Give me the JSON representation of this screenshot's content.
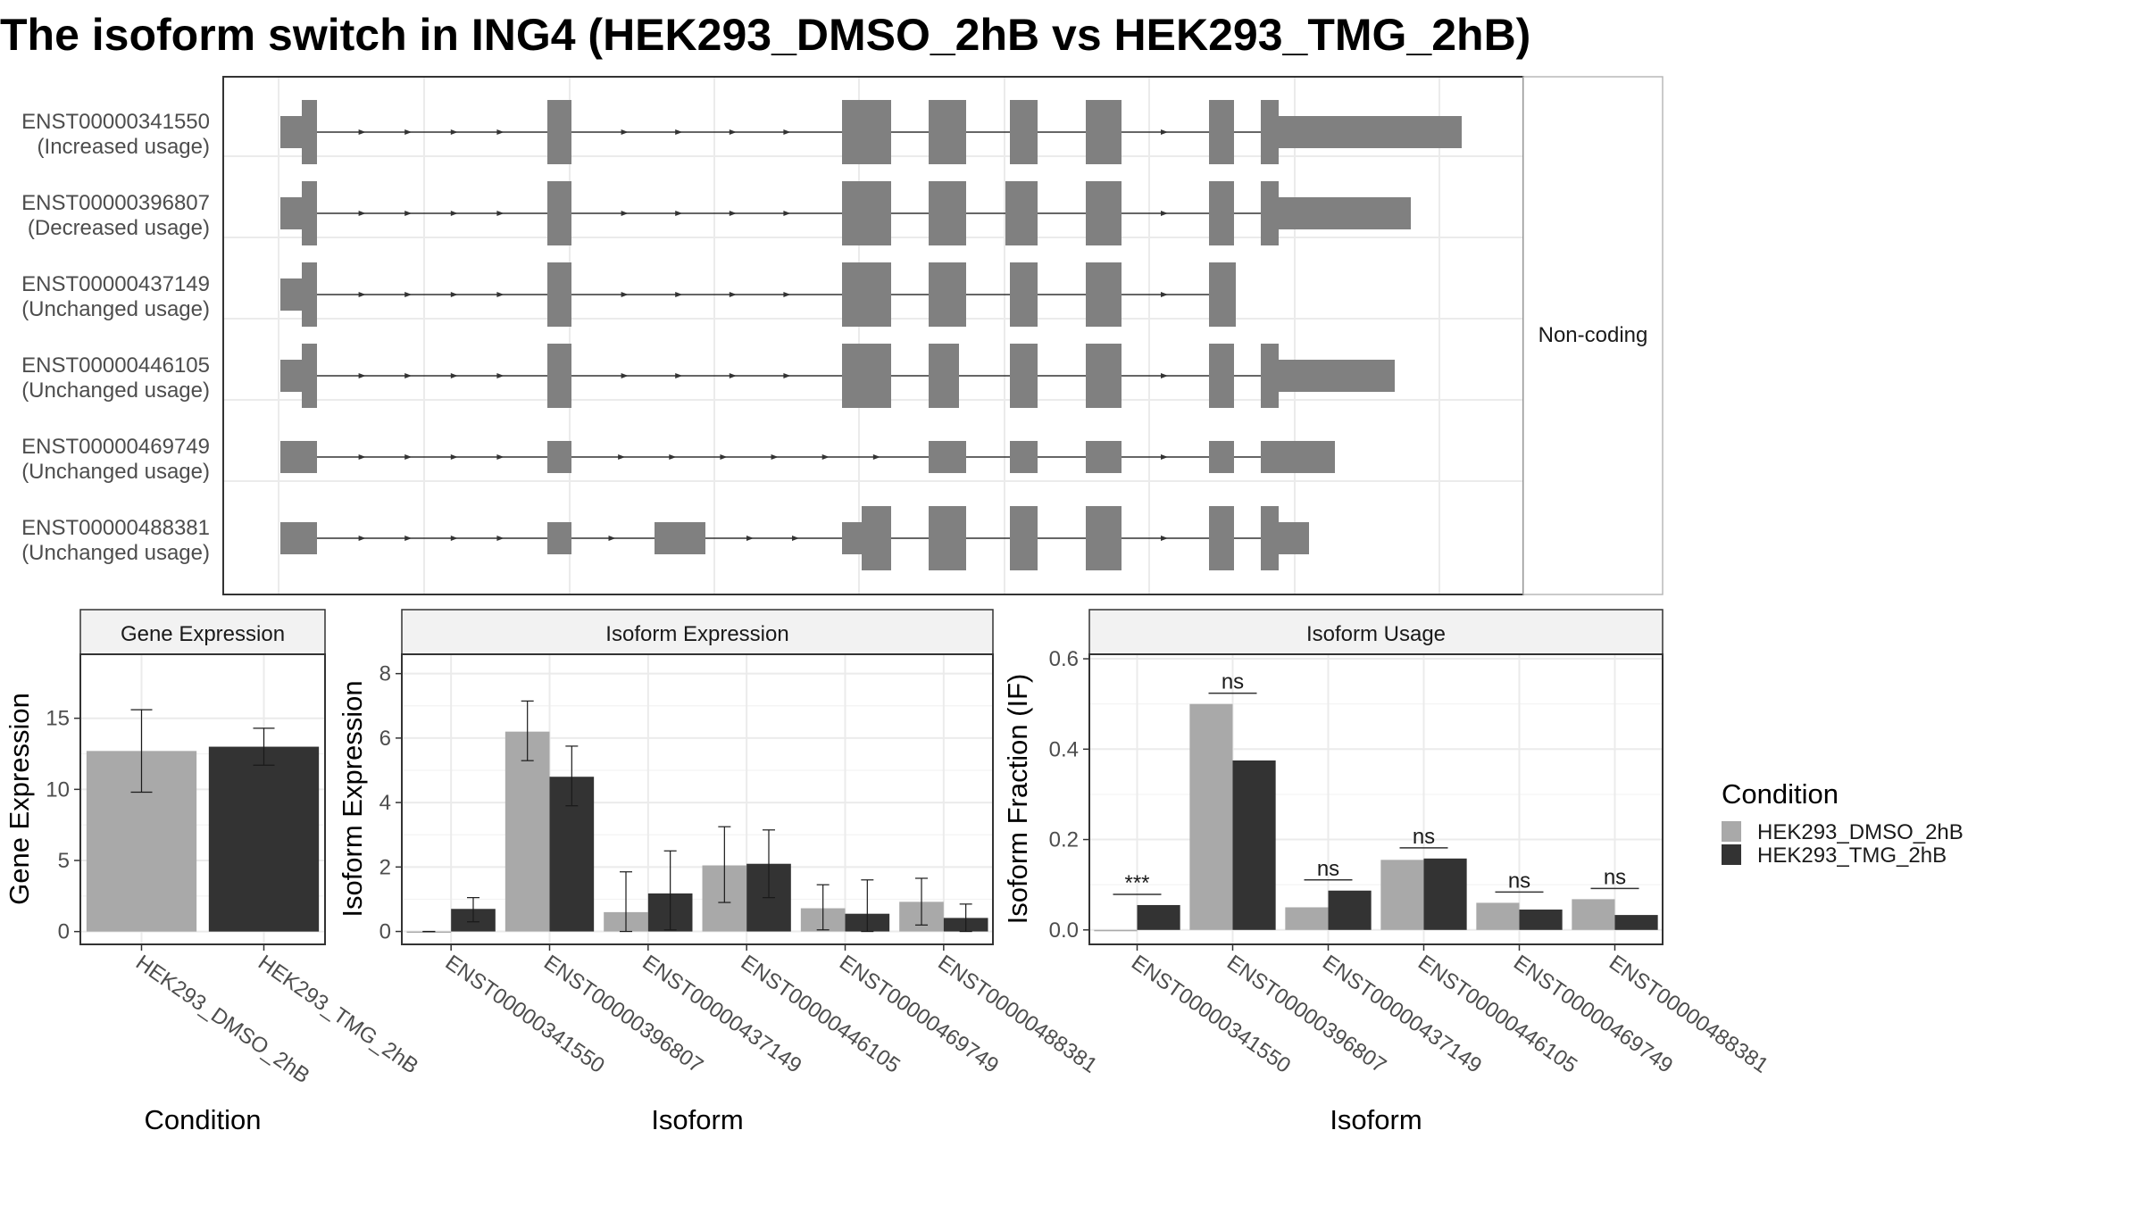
{
  "title": "The isoform switch in ING4 (HEK293_DMSO_2hB vs HEK293_TMG_2hB)",
  "colors": {
    "dmso": "#a9a9a9",
    "tmg": "#333333",
    "exon": "#808080",
    "strip": "#f2f2f2",
    "grid": "#ebebeb"
  },
  "structure": {
    "facet_label": "Non-coding",
    "isoforms": [
      {
        "id": "ENST00000341550",
        "usage": "(Increased usage)"
      },
      {
        "id": "ENST00000396807",
        "usage": "(Decreased usage)"
      },
      {
        "id": "ENST00000437149",
        "usage": "(Unchanged usage)"
      },
      {
        "id": "ENST00000446105",
        "usage": "(Unchanged usage)"
      },
      {
        "id": "ENST00000469749",
        "usage": "(Unchanged usage)"
      },
      {
        "id": "ENST00000488381",
        "usage": "(Unchanged usage)"
      }
    ]
  },
  "chart_data": [
    {
      "type": "bar",
      "panel": "gene",
      "title": "Gene Expression",
      "xlabel": "Condition",
      "ylabel": "Gene Expression",
      "ylim": [
        -0.9,
        19.5
      ],
      "yticks": [
        0,
        5,
        10,
        15
      ],
      "categories": [
        "HEK293_DMSO_2hB",
        "HEK293_TMG_2hB"
      ],
      "values": [
        12.7,
        13.0
      ],
      "errors": [
        [
          9.8,
          15.6
        ],
        [
          11.7,
          14.3
        ]
      ]
    },
    {
      "type": "bar",
      "panel": "isoform_expression",
      "title": "Isoform Expression",
      "xlabel": "Isoform",
      "ylabel": "Isoform Expression",
      "ylim": [
        -0.4,
        8.6
      ],
      "yticks": [
        0,
        2,
        4,
        6,
        8
      ],
      "categories": [
        "ENST00000341550",
        "ENST00000396807",
        "ENST00000437149",
        "ENST00000446105",
        "ENST00000469749",
        "ENST00000488381"
      ],
      "series": [
        {
          "name": "HEK293_DMSO_2hB",
          "values": [
            0.0,
            6.2,
            0.6,
            2.05,
            0.72,
            0.92
          ],
          "errors": [
            [
              0.0,
              0.0
            ],
            [
              5.3,
              7.15
            ],
            [
              0.0,
              1.85
            ],
            [
              0.9,
              3.25
            ],
            [
              0.05,
              1.45
            ],
            [
              0.2,
              1.65
            ]
          ]
        },
        {
          "name": "HEK293_TMG_2hB",
          "values": [
            0.7,
            4.8,
            1.18,
            2.1,
            0.55,
            0.42
          ],
          "errors": [
            [
              0.3,
              1.05
            ],
            [
              3.9,
              5.75
            ],
            [
              0.05,
              2.5
            ],
            [
              1.05,
              3.15
            ],
            [
              0.0,
              1.6
            ],
            [
              0.0,
              0.85
            ]
          ]
        }
      ]
    },
    {
      "type": "bar",
      "panel": "isoform_usage",
      "title": "Isoform Usage",
      "xlabel": "Isoform",
      "ylabel": "Isoform Fraction (IF)",
      "ylim": [
        -0.032,
        0.61
      ],
      "yticks": [
        0.0,
        0.2,
        0.4,
        0.6
      ],
      "categories": [
        "ENST00000341550",
        "ENST00000396807",
        "ENST00000437149",
        "ENST00000446105",
        "ENST00000469749",
        "ENST00000488381"
      ],
      "series": [
        {
          "name": "HEK293_DMSO_2hB",
          "values": [
            0.0,
            0.5,
            0.05,
            0.155,
            0.06,
            0.068
          ]
        },
        {
          "name": "HEK293_TMG_2hB",
          "values": [
            0.055,
            0.375,
            0.087,
            0.158,
            0.045,
            0.033
          ]
        }
      ],
      "significance": [
        "***",
        "ns",
        "ns",
        "ns",
        "ns",
        "ns"
      ]
    }
  ],
  "legend": {
    "title": "Condition",
    "entries": [
      "HEK293_DMSO_2hB",
      "HEK293_TMG_2hB"
    ]
  }
}
